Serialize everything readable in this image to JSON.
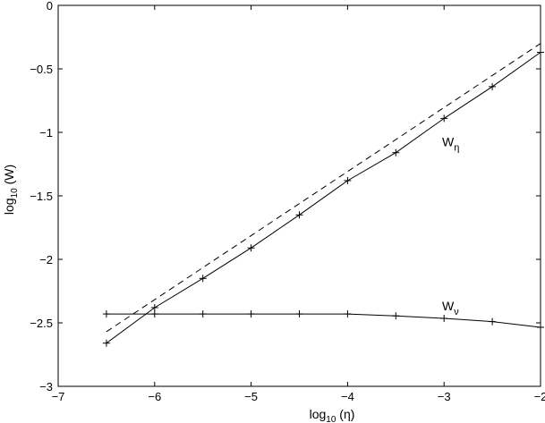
{
  "chart_data": {
    "type": "line",
    "xlabel": {
      "prefix": "log",
      "subscript": "10",
      "suffix": " (η)"
    },
    "ylabel": {
      "prefix": "log",
      "subscript": "10",
      "suffix": " (W)"
    },
    "xlim": [
      -7,
      -2
    ],
    "ylim": [
      -3,
      0
    ],
    "xticks": [
      -7,
      -6,
      -5,
      -4,
      -3,
      -2
    ],
    "yticks": [
      -3,
      -2.5,
      -2,
      -1.5,
      -1,
      -0.5,
      0
    ],
    "xtick_labels": [
      "−7",
      "−6",
      "−5",
      "−4",
      "−3",
      "−2"
    ],
    "ytick_labels": [
      "−3",
      "−2.5",
      "−2",
      "−1.5",
      "−1",
      "−0.5",
      "0"
    ],
    "grid": false,
    "series": [
      {
        "name": "W_η",
        "style": "solid",
        "marker": "+",
        "color": "#000000",
        "x": [
          -6.5,
          -6,
          -5.5,
          -5,
          -4.5,
          -4,
          -3.5,
          -3,
          -2.5,
          -2
        ],
        "y": [
          -2.66,
          -2.38,
          -2.15,
          -1.91,
          -1.65,
          -1.38,
          -1.16,
          -0.89,
          -0.64,
          -0.37
        ]
      },
      {
        "name": "W_ν",
        "style": "solid",
        "marker": "+",
        "color": "#000000",
        "x": [
          -6.5,
          -6,
          -5.5,
          -5,
          -4.5,
          -4,
          -3.5,
          -3,
          -2.5,
          -2
        ],
        "y": [
          -2.43,
          -2.43,
          -2.43,
          -2.43,
          -2.43,
          -2.43,
          -2.445,
          -2.465,
          -2.49,
          -2.535
        ]
      },
      {
        "style": "dashed",
        "marker": "none",
        "color": "#000000",
        "x": [
          -6.5,
          -2
        ],
        "y": [
          -2.57,
          -0.3
        ]
      }
    ],
    "annotations": [
      {
        "base": "W",
        "subscript": "η",
        "x": -3.02,
        "y": -1.11
      },
      {
        "base": "W",
        "subscript": "ν",
        "x": -3.02,
        "y": -2.4
      }
    ]
  }
}
